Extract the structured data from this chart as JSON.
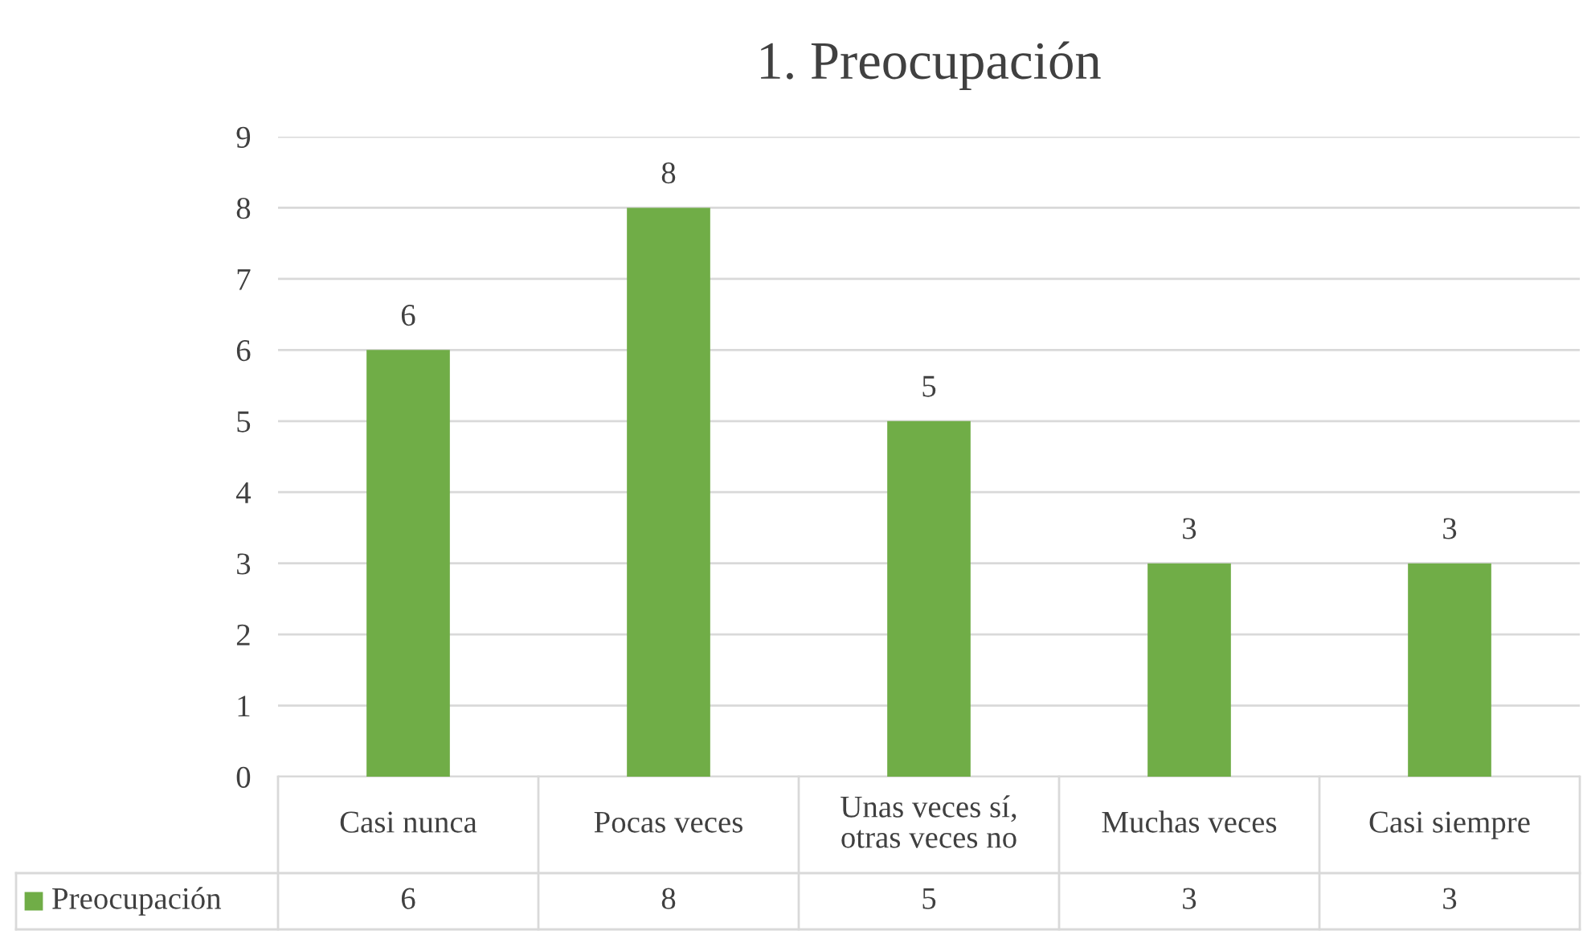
{
  "chart_data": {
    "type": "bar",
    "title": "1. Preocupación",
    "categories": [
      "Casi nunca",
      "Pocas veces",
      "Unas veces sí,\notras veces no",
      "Muchas veces",
      "Casi siempre"
    ],
    "series": [
      {
        "name": "Preocupación",
        "color": "#70ad47",
        "values": [
          6,
          8,
          5,
          3,
          3
        ],
        "value_labels": [
          "6",
          "8",
          "5",
          "3",
          "3"
        ]
      }
    ],
    "ylim": [
      0,
      9
    ],
    "yticks": [
      0,
      1,
      2,
      3,
      4,
      5,
      6,
      7,
      8,
      9
    ],
    "grid": "y",
    "legend": "bottom left",
    "annotations": [
      "6",
      "8",
      "5",
      "3",
      "3"
    ]
  }
}
